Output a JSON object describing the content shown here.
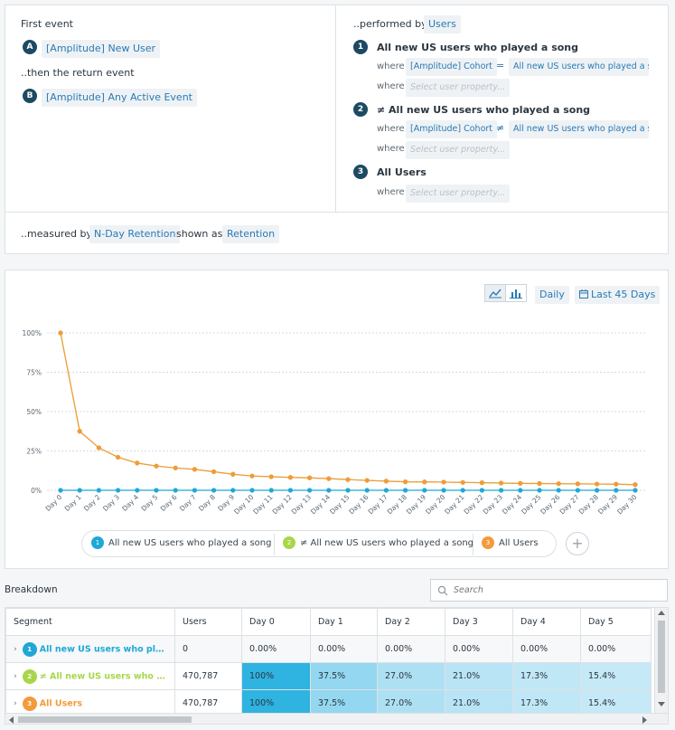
{
  "query": {
    "first_event_label": "First event",
    "first_event": {
      "badge": "A",
      "value": "[Amplitude] New User"
    },
    "return_event_label": "..then the return event",
    "return_event": {
      "badge": "B",
      "value": "[Amplitude] Any Active Event"
    },
    "performed_by_label": "..performed by",
    "performed_by_value": "Users",
    "where_label": "where",
    "segments": [
      {
        "num": "1",
        "name": "All new US users who played a song",
        "property": "[Amplitude] Cohort",
        "op": "=",
        "value": "All new US users who played a so...",
        "placeholder": "Select user property..."
      },
      {
        "num": "2",
        "name": "≠ All new US users who played a song",
        "property": "[Amplitude] Cohort",
        "op": "≠",
        "value": "All new US users who played a so...",
        "placeholder": "Select user property..."
      },
      {
        "num": "3",
        "name": "All Users",
        "placeholder": "Select user property..."
      }
    ],
    "measured_by_label": "..measured by",
    "measured_by_value": "N-Day Retention",
    "shown_as_label": "shown as",
    "shown_as_value": "Retention"
  },
  "controls": {
    "line_icon": "line-chart-icon",
    "bar_icon": "bar-chart-icon",
    "interval": "Daily",
    "calendar_icon": "calendar-icon",
    "range": "Last 45 Days"
  },
  "chart_data": {
    "type": "line",
    "x": [
      "Day 0",
      "Day 1",
      "Day 2",
      "Day 3",
      "Day 4",
      "Day 5",
      "Day 6",
      "Day 7",
      "Day 8",
      "Day 9",
      "Day 10",
      "Day 11",
      "Day 12",
      "Day 13",
      "Day 14",
      "Day 15",
      "Day 16",
      "Day 17",
      "Day 18",
      "Day 19",
      "Day 20",
      "Day 21",
      "Day 22",
      "Day 23",
      "Day 24",
      "Day 25",
      "Day 26",
      "Day 27",
      "Day 28",
      "Day 29",
      "Day 30"
    ],
    "y_ticks": [
      "0%",
      "25%",
      "50%",
      "75%",
      "100%"
    ],
    "ylim": [
      0,
      100
    ],
    "grid": true,
    "series": [
      {
        "name": "All new US users who played a song",
        "color": "#1fa8d6",
        "values": [
          0,
          0,
          0,
          0,
          0,
          0,
          0,
          0,
          0,
          0,
          0,
          0,
          0,
          0,
          0,
          0,
          0,
          0,
          0,
          0,
          0,
          0,
          0,
          0,
          0,
          0,
          0,
          0,
          0,
          0,
          0
        ]
      },
      {
        "name": "≠ All new US users who played a song",
        "color": "#a8d64a",
        "values": [
          100,
          37.5,
          27.0,
          21.0,
          17.3,
          15.4,
          14.2,
          13.3,
          11.8,
          10.2,
          9.1,
          8.6,
          8.2,
          7.9,
          7.4,
          6.8,
          6.3,
          5.8,
          5.4,
          5.3,
          5.2,
          5.0,
          4.8,
          4.6,
          4.4,
          4.3,
          4.2,
          4.1,
          4.0,
          3.9,
          3.6
        ]
      },
      {
        "name": "All Users",
        "color": "#f39a3b",
        "values": [
          100,
          37.5,
          27.0,
          21.0,
          17.3,
          15.4,
          14.2,
          13.3,
          11.8,
          10.2,
          9.1,
          8.6,
          8.2,
          7.9,
          7.4,
          6.8,
          6.3,
          5.8,
          5.4,
          5.3,
          5.2,
          5.0,
          4.8,
          4.6,
          4.4,
          4.3,
          4.2,
          4.1,
          4.0,
          3.9,
          3.6
        ]
      }
    ]
  },
  "legend": [
    {
      "badge": "1",
      "label": "All new US users who played a song",
      "color": "#1fa8d6"
    },
    {
      "badge": "2",
      "label": "≠ All new US users who played a song",
      "color": "#a8d64a"
    },
    {
      "badge": "3",
      "label": "All Users",
      "color": "#f39a3b"
    }
  ],
  "breakdown": {
    "title": "Breakdown",
    "search_placeholder": "Search",
    "columns": [
      "Segment",
      "Users",
      "Day 0",
      "Day 1",
      "Day 2",
      "Day 3",
      "Day 4",
      "Day 5"
    ],
    "rows": [
      {
        "badge": "1",
        "segment": "All new US users who played...",
        "color": "#1fa8d6",
        "users": "0",
        "cells": [
          "0.00%",
          "0.00%",
          "0.00%",
          "0.00%",
          "0.00%",
          "0.00%"
        ]
      },
      {
        "badge": "2",
        "segment": "≠ All new US users who playe...",
        "color": "#a8d64a",
        "users": "470,787",
        "cells": [
          "100%",
          "37.5%",
          "27.0%",
          "21.0%",
          "17.3%",
          "15.4%"
        ]
      },
      {
        "badge": "3",
        "segment": "All Users",
        "color": "#f39a3b",
        "users": "470,787",
        "cells": [
          "100%",
          "37.5%",
          "27.0%",
          "21.0%",
          "17.3%",
          "15.4%"
        ]
      }
    ]
  }
}
